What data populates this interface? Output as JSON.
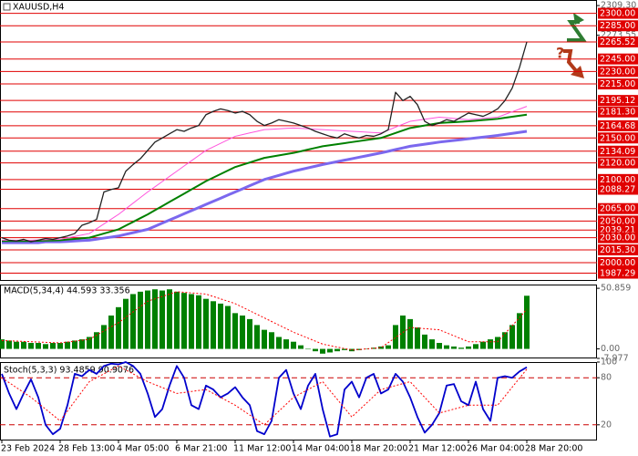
{
  "chart_data": [
    {
      "type": "line",
      "title": "XAUUSD,H4",
      "annotation": "?",
      "categories": [
        "23 Feb 2024",
        null,
        null,
        null,
        null,
        null,
        null,
        null,
        "28 Feb 13:00",
        null,
        null,
        null,
        null,
        null,
        null,
        null,
        "4 Mar 05:00",
        null,
        null,
        null,
        null,
        null,
        null,
        null,
        "6 Mar 21:00",
        null,
        null,
        null,
        null,
        null,
        null,
        null,
        "11 Mar 12:00",
        null,
        null,
        null,
        null,
        null,
        null,
        null,
        "14 Mar 04:00",
        null,
        null,
        null,
        null,
        null,
        null,
        null,
        "18 Mar 20:00",
        null,
        null,
        null,
        null,
        null,
        null,
        null,
        "21 Mar 12:00",
        null,
        null,
        null,
        null,
        null,
        null,
        null,
        "26 Mar 04:00",
        null,
        null,
        null,
        null,
        null,
        null,
        null,
        "28 Mar 20:00"
      ],
      "ylim": [
        1978,
        2316
      ],
      "yticks": [
        {
          "value": 2309.3,
          "label": "2309.30"
        },
        {
          "value": 2273.55,
          "label": "2273.55"
        }
      ],
      "level_color": "#e00000",
      "levels": [
        {
          "value": 2300,
          "label": "2300.00"
        },
        {
          "value": 2285,
          "label": "2285.00"
        },
        {
          "value": 2265.52,
          "label": "2265.52"
        },
        {
          "value": 2245,
          "label": "2245.00"
        },
        {
          "value": 2230,
          "label": "2230.00"
        },
        {
          "value": 2215,
          "label": "2215.00"
        },
        {
          "value": 2195.12,
          "label": "2195.12"
        },
        {
          "value": 2181.3,
          "label": "2181.30"
        },
        {
          "value": 2164.68,
          "label": "2164.68"
        },
        {
          "value": 2150,
          "label": "2150.00"
        },
        {
          "value": 2134.09,
          "label": "2134.09"
        },
        {
          "value": 2120,
          "label": "2120.00"
        },
        {
          "value": 2100,
          "label": "2100.00"
        },
        {
          "value": 2088.27,
          "label": "2088.27"
        },
        {
          "value": 2065,
          "label": "2065.00"
        },
        {
          "value": 2050,
          "label": "2050.00"
        },
        {
          "value": 2039.21,
          "label": "2039.21"
        },
        {
          "value": 2030,
          "label": "2030.00"
        },
        {
          "value": 2015.3,
          "label": "2015.30"
        },
        {
          "value": 2000,
          "label": "2000.00"
        },
        {
          "value": 1987.29,
          "label": "1987.29"
        }
      ],
      "series": [
        {
          "type": "line",
          "color": "#7b68ee",
          "values": [
            2024,
            2024,
            2024,
            2024,
            2024,
            2024,
            2025,
            2025,
            2025,
            2025.5,
            2026,
            2026.5,
            2027,
            2028.25,
            2029.5,
            2030.75,
            2032,
            2034,
            2036,
            2038,
            2040,
            2043.75,
            2047.5,
            2051.25,
            2055,
            2058.75,
            2062.5,
            2066.25,
            2070,
            2073.75,
            2077.5,
            2081.25,
            2085,
            2088.75,
            2092.5,
            2096.25,
            2100,
            2102.5,
            2105,
            2107.5,
            2110,
            2112,
            2114,
            2116,
            2118,
            2119.75,
            2121.5,
            2123.25,
            2125,
            2126.75,
            2128.5,
            2130.25,
            2132,
            2134,
            2136,
            2138,
            2140,
            2141.25,
            2142.5,
            2143.75,
            2145,
            2146,
            2147,
            2148,
            2149,
            2150,
            2151,
            2152,
            2153,
            2154.25,
            2155.5,
            2156.75,
            2158
          ]
        },
        {
          "type": "line",
          "color": "#008000",
          "values": [
            2026,
            2026,
            2026,
            2026,
            2026,
            2026.25,
            2026.5,
            2026.75,
            2027,
            2027.75,
            2028.5,
            2029.25,
            2030,
            2032.5,
            2035,
            2037.5,
            2040,
            2044.5,
            2049,
            2053.5,
            2058,
            2063,
            2068,
            2073,
            2078,
            2083,
            2088,
            2093,
            2098,
            2102.25,
            2106.5,
            2110.75,
            2115,
            2117.75,
            2120.5,
            2123.25,
            2126,
            2127.5,
            2129,
            2130.5,
            2132,
            2134,
            2136,
            2138,
            2140,
            2141.25,
            2142.5,
            2143.75,
            2145,
            2146.25,
            2147.5,
            2148.75,
            2150,
            2153,
            2156,
            2159,
            2162,
            2163.5,
            2165,
            2166.5,
            2168,
            2168.5,
            2169,
            2169.5,
            2170,
            2170.75,
            2171.5,
            2172.25,
            2173,
            2174.25,
            2175.5,
            2176.75,
            2178
          ]
        },
        {
          "type": "line",
          "color": "#ff55dd",
          "values": [
            2027,
            2027,
            2027,
            2027,
            2027,
            2027.25,
            2027.5,
            2027.75,
            2028,
            2029.75,
            2031.5,
            2033.25,
            2035,
            2040.75,
            2046.5,
            2052.25,
            2058,
            2064.75,
            2071.5,
            2078.25,
            2085,
            2091.25,
            2097.5,
            2103.75,
            2110,
            2116.25,
            2122.5,
            2128.75,
            2135,
            2139.25,
            2143.5,
            2147.75,
            2152,
            2154,
            2156,
            2158,
            2160,
            2160.5,
            2161,
            2161.5,
            2162,
            2161.5,
            2161,
            2160.5,
            2160,
            2159.5,
            2159,
            2158.5,
            2158,
            2157.5,
            2157,
            2156.5,
            2156,
            2159.5,
            2163,
            2166.5,
            2170,
            2171.25,
            2172.5,
            2173.75,
            2175,
            2174.25,
            2173.5,
            2172.75,
            2172,
            2172.75,
            2173.5,
            2174.25,
            2175,
            2178.25,
            2181.5,
            2184.75,
            2188
          ]
        },
        {
          "type": "line",
          "color": "#222222",
          "values": [
            2030,
            2027,
            2026,
            2028,
            2025,
            2027,
            2029,
            2028,
            2030,
            2032,
            2035,
            2045,
            2048,
            2052,
            2085,
            2088,
            2090,
            2110,
            2118,
            2125,
            2135,
            2145,
            2150,
            2155,
            2160,
            2158,
            2162,
            2165,
            2178,
            2182,
            2185,
            2183,
            2180,
            2182,
            2178,
            2170,
            2165,
            2168,
            2172,
            2170,
            2168,
            2165,
            2162,
            2158,
            2155,
            2152,
            2150,
            2155,
            2152,
            2150,
            2153,
            2152,
            2155,
            2160,
            2205,
            2195,
            2200,
            2190,
            2170,
            2165,
            2168,
            2172,
            2170,
            2175,
            2180,
            2178,
            2176,
            2180,
            2185,
            2195,
            2210,
            2235,
            2265.52
          ]
        }
      ]
    },
    {
      "type": "bar",
      "title": "MACD(5,34,4) 44.593 33.356",
      "ylim": [
        -8,
        54
      ],
      "yticks": [
        {
          "value": 50.859,
          "label": "50.859"
        },
        {
          "value": 0,
          "label": "0.00"
        },
        {
          "value": -7.977,
          "label": "-7.977"
        }
      ],
      "series": [
        {
          "type": "bar",
          "color": "#008000",
          "values": [
            8,
            7,
            6,
            6,
            5,
            5,
            4,
            5,
            5,
            6,
            7,
            8,
            10,
            14,
            20,
            28,
            35,
            42,
            46,
            48,
            49,
            50,
            49,
            50,
            48,
            47,
            46,
            45,
            42,
            40,
            38,
            36,
            30,
            28,
            25,
            20,
            16,
            14,
            10,
            8,
            6,
            3,
            0,
            -2,
            -4,
            -3,
            -2,
            -1,
            -2,
            -1,
            0,
            1,
            2,
            3,
            20,
            28,
            25,
            18,
            12,
            8,
            5,
            3,
            2,
            1,
            2,
            4,
            6,
            8,
            10,
            14,
            20,
            30,
            44.593
          ]
        },
        {
          "type": "line",
          "color": "#ff0000",
          "dash": true,
          "values": [
            7,
            6.75,
            6.5,
            6.25,
            6,
            5.75,
            5.5,
            5.25,
            5,
            5.75,
            6.5,
            7.25,
            8,
            11.5,
            15,
            18.5,
            22,
            26.5,
            31,
            35.5,
            40,
            42,
            44,
            46,
            48,
            47.5,
            47,
            46.5,
            46,
            44,
            42,
            40,
            38,
            35,
            32,
            29,
            26,
            23,
            20,
            17,
            14,
            11.5,
            9,
            6.5,
            4,
            2.75,
            1.5,
            0.25,
            -1,
            -0.5,
            0,
            0.5,
            1,
            5.25,
            9.5,
            13.75,
            18,
            17.5,
            17,
            16.5,
            16,
            13.5,
            11,
            8.5,
            6,
            6,
            6,
            6,
            6,
            12.75,
            19.5,
            26.25,
            33.356
          ]
        }
      ]
    },
    {
      "type": "line",
      "title": "Stoch(5,3,3) 93.4859 90.9076",
      "ylim": [
        0,
        100
      ],
      "yticks": [
        100,
        80,
        20
      ],
      "levels": [
        80,
        20
      ],
      "level_color": "#cc0000",
      "series": [
        {
          "type": "line",
          "color": "#0000cc",
          "values": [
            85,
            60,
            40,
            60,
            78,
            55,
            20,
            8,
            15,
            45,
            85,
            82,
            90,
            85,
            95,
            98,
            97,
            100,
            95,
            85,
            60,
            30,
            40,
            70,
            95,
            80,
            45,
            40,
            70,
            65,
            55,
            60,
            68,
            55,
            45,
            12,
            8,
            25,
            80,
            90,
            60,
            40,
            70,
            85,
            40,
            5,
            8,
            65,
            75,
            55,
            80,
            85,
            60,
            65,
            85,
            75,
            55,
            30,
            10,
            20,
            35,
            70,
            72,
            50,
            45,
            75,
            40,
            25,
            80,
            82,
            80,
            88,
            93.4859
          ]
        },
        {
          "type": "line",
          "color": "#ff0000",
          "dash": true,
          "values": [
            80,
            73.75,
            67.5,
            61.25,
            55,
            47.5,
            40,
            32.5,
            25,
            37.5,
            50,
            62.5,
            75,
            80,
            85,
            90,
            95,
            90,
            85,
            80,
            75,
            71.25,
            67.5,
            63.75,
            60,
            61.25,
            62.5,
            63.75,
            65,
            60,
            55,
            50,
            45,
            38.75,
            32.5,
            26.25,
            20,
            28.75,
            37.5,
            46.25,
            55,
            60,
            65,
            70,
            75,
            63.75,
            52.5,
            41.25,
            30,
            38.75,
            47.5,
            56.25,
            65,
            67.5,
            70,
            72.5,
            75,
            65,
            55,
            45,
            35,
            37.5,
            40,
            42.5,
            45,
            45,
            45,
            45,
            45,
            56.5,
            68,
            79.5,
            90.9076
          ]
        }
      ]
    }
  ]
}
